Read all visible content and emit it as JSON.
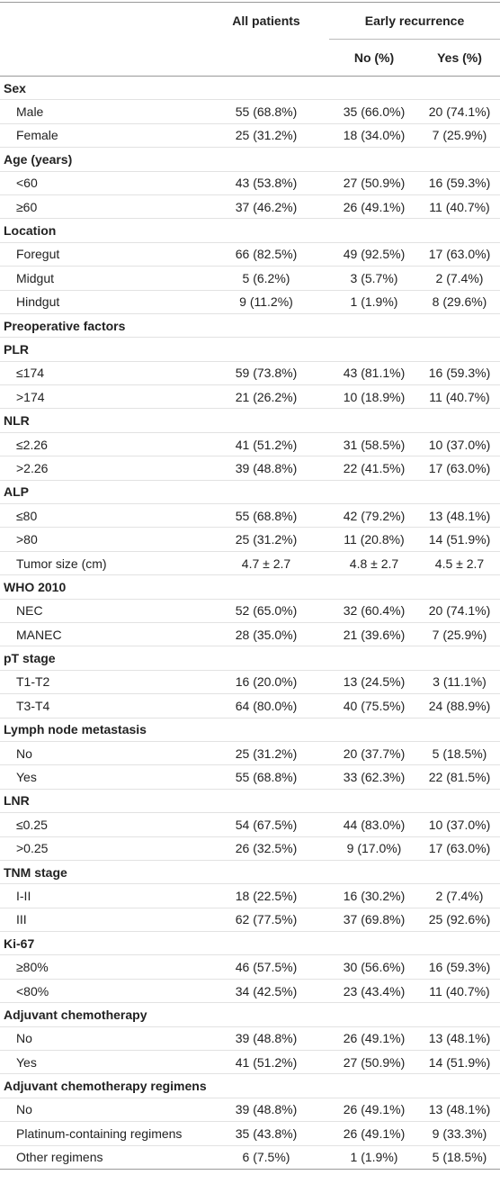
{
  "header": {
    "all_patients": "All patients",
    "early_recurrence": "Early recurrence",
    "no": "No (%)",
    "yes": "Yes (%)"
  },
  "rows": [
    {
      "label": "Sex"
    },
    {
      "label": "Male",
      "cells": [
        "55 (68.8%)",
        "35 (66.0%)",
        "20 (74.1%)"
      ]
    },
    {
      "label": "Female",
      "cells": [
        "25 (31.2%)",
        "18 (34.0%)",
        "7 (25.9%)"
      ]
    },
    {
      "label": "Age (years)"
    },
    {
      "label": "<60",
      "cells": [
        "43 (53.8%)",
        "27 (50.9%)",
        "16 (59.3%)"
      ]
    },
    {
      "label": "≥60",
      "cells": [
        "37 (46.2%)",
        "26 (49.1%)",
        "11 (40.7%)"
      ]
    },
    {
      "label": "Location"
    },
    {
      "label": "Foregut",
      "cells": [
        "66 (82.5%)",
        "49 (92.5%)",
        "17 (63.0%)"
      ]
    },
    {
      "label": "Midgut",
      "cells": [
        "5 (6.2%)",
        "3 (5.7%)",
        "2 (7.4%)"
      ]
    },
    {
      "label": "Hindgut",
      "cells": [
        "9 (11.2%)",
        "1 (1.9%)",
        "8 (29.6%)"
      ]
    },
    {
      "label": "Preoperative factors"
    },
    {
      "label": "PLR"
    },
    {
      "label": "≤174",
      "cells": [
        "59 (73.8%)",
        "43 (81.1%)",
        "16 (59.3%)"
      ]
    },
    {
      "label": ">174",
      "cells": [
        "21 (26.2%)",
        "10 (18.9%)",
        "11 (40.7%)"
      ]
    },
    {
      "label": "NLR"
    },
    {
      "label": "≤2.26",
      "cells": [
        "41 (51.2%)",
        "31 (58.5%)",
        "10 (37.0%)"
      ]
    },
    {
      "label": ">2.26",
      "cells": [
        "39 (48.8%)",
        "22 (41.5%)",
        "17 (63.0%)"
      ]
    },
    {
      "label": "ALP"
    },
    {
      "label": "≤80",
      "cells": [
        "55 (68.8%)",
        "42 (79.2%)",
        "13 (48.1%)"
      ]
    },
    {
      "label": ">80",
      "cells": [
        "25 (31.2%)",
        "11 (20.8%)",
        "14 (51.9%)"
      ]
    },
    {
      "label": "Tumor size (cm)",
      "cells": [
        "4.7 ± 2.7",
        "4.8 ± 2.7",
        "4.5 ± 2.7"
      ]
    },
    {
      "label": "WHO 2010"
    },
    {
      "label": "NEC",
      "cells": [
        "52 (65.0%)",
        "32 (60.4%)",
        "20 (74.1%)"
      ]
    },
    {
      "label": "MANEC",
      "cells": [
        "28 (35.0%)",
        "21 (39.6%)",
        "7 (25.9%)"
      ]
    },
    {
      "label": "pT stage"
    },
    {
      "label": "T1-T2",
      "cells": [
        "16 (20.0%)",
        "13 (24.5%)",
        "3 (11.1%)"
      ]
    },
    {
      "label": "T3-T4",
      "cells": [
        "64 (80.0%)",
        "40 (75.5%)",
        "24 (88.9%)"
      ]
    },
    {
      "label": "Lymph node metastasis"
    },
    {
      "label": "No",
      "cells": [
        "25 (31.2%)",
        "20 (37.7%)",
        "5 (18.5%)"
      ]
    },
    {
      "label": "Yes",
      "cells": [
        "55 (68.8%)",
        "33 (62.3%)",
        "22 (81.5%)"
      ]
    },
    {
      "label": "LNR"
    },
    {
      "label": "≤0.25",
      "cells": [
        "54 (67.5%)",
        "44 (83.0%)",
        "10 (37.0%)"
      ]
    },
    {
      "label": ">0.25",
      "cells": [
        "26 (32.5%)",
        "9 (17.0%)",
        "17 (63.0%)"
      ]
    },
    {
      "label": "TNM stage"
    },
    {
      "label": "I-II",
      "cells": [
        "18 (22.5%)",
        "16 (30.2%)",
        "2 (7.4%)"
      ]
    },
    {
      "label": "III",
      "cells": [
        "62 (77.5%)",
        "37 (69.8%)",
        "25 (92.6%)"
      ]
    },
    {
      "label": "Ki-67"
    },
    {
      "label": "≥80%",
      "cells": [
        "46 (57.5%)",
        "30 (56.6%)",
        "16 (59.3%)"
      ]
    },
    {
      "label": "<80%",
      "cells": [
        "34 (42.5%)",
        "23 (43.4%)",
        "11 (40.7%)"
      ]
    },
    {
      "label": "Adjuvant chemotherapy"
    },
    {
      "label": "No",
      "cells": [
        "39 (48.8%)",
        "26 (49.1%)",
        "13 (48.1%)"
      ]
    },
    {
      "label": "Yes",
      "cells": [
        "41 (51.2%)",
        "27 (50.9%)",
        "14 (51.9%)"
      ]
    },
    {
      "label": "Adjuvant chemotherapy regimens"
    },
    {
      "label": "No",
      "cells": [
        "39 (48.8%)",
        "26 (49.1%)",
        "13 (48.1%)"
      ]
    },
    {
      "label": "Platinum-containing regimens",
      "cells": [
        "35 (43.8%)",
        "26 (49.1%)",
        "9 (33.3%)"
      ]
    },
    {
      "label": "Other regimens",
      "cells": [
        "6 (7.5%)",
        "1 (1.9%)",
        "5 (18.5%)"
      ]
    }
  ]
}
